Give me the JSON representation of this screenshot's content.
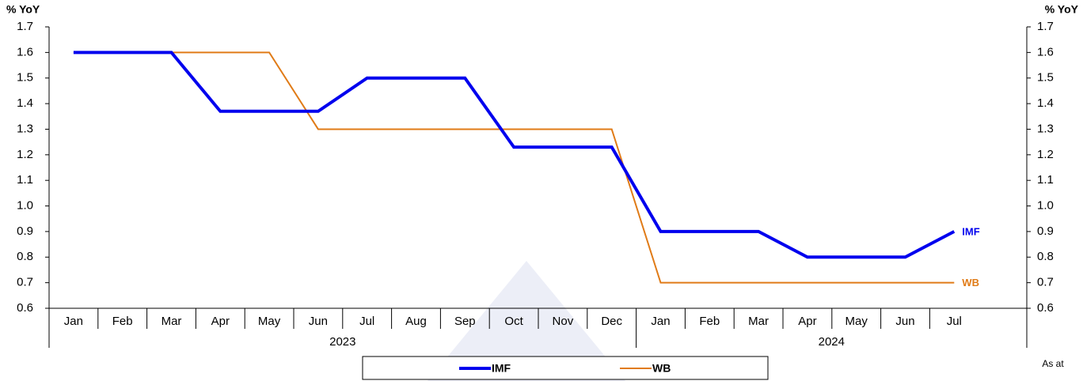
{
  "chart_data": {
    "type": "line",
    "y_axis_label": "% YoY",
    "y2_axis_label": "% YoY",
    "category_groups": [
      {
        "label": "2023",
        "categories": [
          "Jan",
          "Feb",
          "Mar",
          "Apr",
          "May",
          "Jun",
          "Jul",
          "Aug",
          "Sep",
          "Oct",
          "Nov",
          "Dec"
        ]
      },
      {
        "label": "2024",
        "categories": [
          "Jan",
          "Feb",
          "Mar",
          "Apr",
          "May",
          "Jun",
          "Jul"
        ]
      }
    ],
    "series": [
      {
        "name": "IMF",
        "color": "#0000ee",
        "values": [
          1.6,
          1.6,
          1.6,
          1.37,
          1.37,
          1.37,
          1.5,
          1.5,
          1.5,
          1.23,
          1.23,
          1.23,
          0.9,
          0.9,
          0.9,
          0.8,
          0.8,
          0.8,
          0.9
        ]
      },
      {
        "name": "WB",
        "color": "#e07b17",
        "values": [
          1.6,
          1.6,
          1.6,
          1.6,
          1.6,
          1.3,
          1.3,
          1.3,
          1.3,
          1.3,
          1.3,
          1.3,
          0.7,
          0.7,
          0.7,
          0.7,
          0.7,
          0.7,
          0.7
        ]
      }
    ],
    "ylim": [
      0.6,
      1.7
    ],
    "yticks": [
      0.6,
      0.7,
      0.8,
      0.9,
      {
        "value": 1,
        "label": "1.0"
      },
      1.1,
      1.2,
      1.3,
      1.4,
      1.5,
      1.6,
      1.7
    ],
    "y2lim": [
      0.6,
      1.7
    ],
    "y2ticks": [
      0.6,
      0.7,
      0.8,
      0.9,
      {
        "value": 1,
        "label": "1.0"
      },
      1.1,
      1.2,
      1.3,
      1.4,
      1.5,
      1.6,
      1.7
    ],
    "note": "As at"
  }
}
